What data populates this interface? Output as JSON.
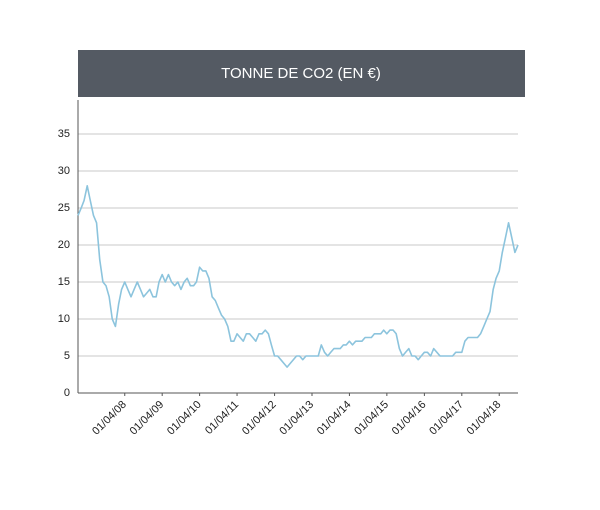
{
  "chart_data": {
    "type": "line",
    "title": "TONNE DE CO2 (EN €)",
    "x": [
      "2007-01-01",
      "2007-02-01",
      "2007-03-01",
      "2007-04-01",
      "2007-05-01",
      "2007-06-01",
      "2007-07-01",
      "2007-08-01",
      "2007-09-01",
      "2007-10-01",
      "2007-11-01",
      "2007-12-01",
      "2008-01-01",
      "2008-02-01",
      "2008-03-01",
      "2008-04-01",
      "2008-05-01",
      "2008-06-01",
      "2008-07-01",
      "2008-08-01",
      "2008-09-01",
      "2008-10-01",
      "2008-11-01",
      "2008-12-01",
      "2009-01-01",
      "2009-02-01",
      "2009-03-01",
      "2009-04-01",
      "2009-05-01",
      "2009-06-01",
      "2009-07-01",
      "2009-08-01",
      "2009-09-01",
      "2009-10-01",
      "2009-11-01",
      "2009-12-01",
      "2010-01-01",
      "2010-02-01",
      "2010-03-01",
      "2010-04-01",
      "2010-05-01",
      "2010-06-01",
      "2010-07-01",
      "2010-08-01",
      "2010-09-01",
      "2010-10-01",
      "2010-11-01",
      "2010-12-01",
      "2011-01-01",
      "2011-02-01",
      "2011-03-01",
      "2011-04-01",
      "2011-05-01",
      "2011-06-01",
      "2011-07-01",
      "2011-08-01",
      "2011-09-01",
      "2011-10-01",
      "2011-11-01",
      "2011-12-01",
      "2012-01-01",
      "2012-02-01",
      "2012-03-01",
      "2012-04-01",
      "2012-05-01",
      "2012-06-01",
      "2012-07-01",
      "2012-08-01",
      "2012-09-01",
      "2012-10-01",
      "2012-11-01",
      "2012-12-01",
      "2013-01-01",
      "2013-02-01",
      "2013-03-01",
      "2013-04-01",
      "2013-05-01",
      "2013-06-01",
      "2013-07-01",
      "2013-08-01",
      "2013-09-01",
      "2013-10-01",
      "2013-11-01",
      "2013-12-01",
      "2014-01-01",
      "2014-02-01",
      "2014-03-01",
      "2014-04-01",
      "2014-05-01",
      "2014-06-01",
      "2014-07-01",
      "2014-08-01",
      "2014-09-01",
      "2014-10-01",
      "2014-11-01",
      "2014-12-01",
      "2015-01-01",
      "2015-02-01",
      "2015-03-01",
      "2015-04-01",
      "2015-05-01",
      "2015-06-01",
      "2015-07-01",
      "2015-08-01",
      "2015-09-01",
      "2015-10-01",
      "2015-11-01",
      "2015-12-01",
      "2016-01-01",
      "2016-02-01",
      "2016-03-01",
      "2016-04-01",
      "2016-05-01",
      "2016-06-01",
      "2016-07-01",
      "2016-08-01",
      "2016-09-01",
      "2016-10-01",
      "2016-11-01",
      "2016-12-01",
      "2017-01-01",
      "2017-02-01",
      "2017-03-01",
      "2017-04-01",
      "2017-05-01",
      "2017-06-01",
      "2017-07-01",
      "2017-08-01",
      "2017-09-01",
      "2017-10-01",
      "2017-11-01",
      "2017-12-01",
      "2018-01-01",
      "2018-02-01",
      "2018-03-01",
      "2018-04-01",
      "2018-05-01",
      "2018-06-01",
      "2018-07-01",
      "2018-08-01",
      "2018-09-01",
      "2018-10-01"
    ],
    "series": [
      {
        "color": "#8cc4dd",
        "values": [
          24,
          25,
          26,
          28,
          26,
          24,
          23,
          18,
          15,
          14.5,
          13,
          10,
          9,
          12,
          14,
          15,
          14,
          13,
          14,
          15,
          14,
          13,
          13.5,
          14,
          13,
          13,
          15,
          16,
          15,
          16,
          15,
          14.5,
          15,
          14,
          15,
          15.5,
          14.5,
          14.5,
          15,
          17,
          16.5,
          16.5,
          15.5,
          13,
          12.5,
          11.5,
          10.5,
          10,
          9,
          7,
          7,
          8,
          7.5,
          7,
          8,
          8,
          7.5,
          7,
          8,
          8,
          8.5,
          8,
          6.5,
          5,
          5,
          4.5,
          4,
          3.5,
          4,
          4.5,
          5,
          5,
          4.5,
          5,
          5,
          5,
          5,
          5,
          6.5,
          5.5,
          5,
          5.5,
          6,
          6,
          6,
          6.5,
          6.5,
          7,
          6.5,
          7,
          7,
          7,
          7.5,
          7.5,
          7.5,
          8,
          8,
          8,
          8.5,
          8,
          8.5,
          8.5,
          8,
          6,
          5,
          5.5,
          6,
          5,
          5,
          4.5,
          5,
          5.5,
          5.5,
          5,
          6,
          5.5,
          5,
          5,
          5,
          5,
          5,
          5.5,
          5.5,
          5.5,
          7,
          7.5,
          7.5,
          7.5,
          7.5,
          8,
          9,
          10,
          11,
          14,
          15.5,
          16.5,
          19,
          21,
          23,
          21,
          19,
          20
        ]
      }
    ],
    "xlim": [
      "2007-01-01",
      "2018-10-01"
    ],
    "xticks": [
      {
        "value": "2008-04-01",
        "label": "01/04/08"
      },
      {
        "value": "2009-04-01",
        "label": "01/04/09"
      },
      {
        "value": "2010-04-01",
        "label": "01/04/10"
      },
      {
        "value": "2011-04-01",
        "label": "01/04/11"
      },
      {
        "value": "2012-04-01",
        "label": "01/04/12"
      },
      {
        "value": "2013-04-01",
        "label": "01/04/13"
      },
      {
        "value": "2014-04-01",
        "label": "01/04/14"
      },
      {
        "value": "2015-04-01",
        "label": "01/04/15"
      },
      {
        "value": "2016-04-01",
        "label": "01/04/16"
      },
      {
        "value": "2017-04-01",
        "label": "01/04/17"
      },
      {
        "value": "2018-04-01",
        "label": "01/04/18"
      }
    ],
    "ylim": [
      0,
      40
    ],
    "yticks": [
      0,
      5,
      10,
      15,
      20,
      25,
      30,
      35
    ],
    "grid": true
  }
}
